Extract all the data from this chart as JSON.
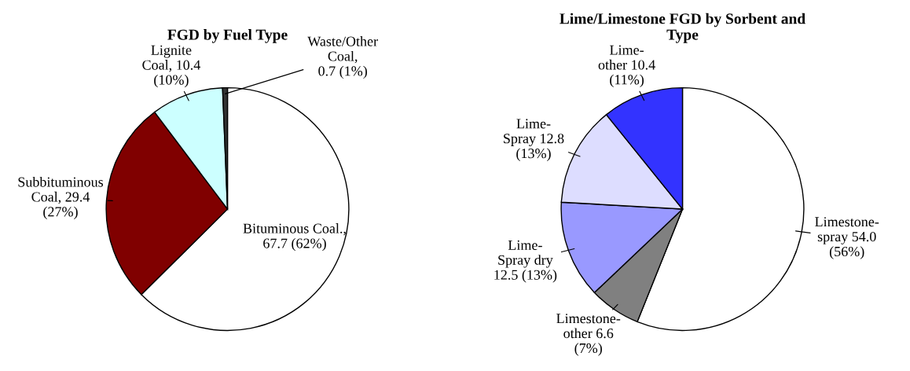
{
  "chart_data": [
    {
      "type": "pie",
      "title": "FGD by Fuel Type",
      "categories": [
        "Bituminous Coal.,\n67.7 (62%)",
        "Subbituminous\nCoal, 29.4\n(27%)",
        "Lignite\nCoal, 10.4\n(10%)",
        "Waste/Other\nCoal,\n0.7 (1%)"
      ],
      "values": [
        67.7,
        29.4,
        10.4,
        0.7
      ],
      "colors": [
        "#ffffff",
        "#800000",
        "#ccffff",
        "#333333"
      ]
    },
    {
      "type": "pie",
      "title": "Lime/Limestone FGD by Sorbent and\nType",
      "categories": [
        "Limestone-\nspray 54.0\n(56%)",
        "Limestone-\nother 6.6\n(7%)",
        "Lime-\nSpray dry\n12.5 (13%)",
        "Lime-\nSpray 12.8\n(13%)",
        "Lime-\nother 10.4\n(11%)"
      ],
      "values": [
        54.0,
        6.6,
        12.5,
        12.8,
        10.4
      ],
      "colors": [
        "#ffffff",
        "#808080",
        "#9999ff",
        "#ddddff",
        "#3333ff"
      ]
    }
  ]
}
